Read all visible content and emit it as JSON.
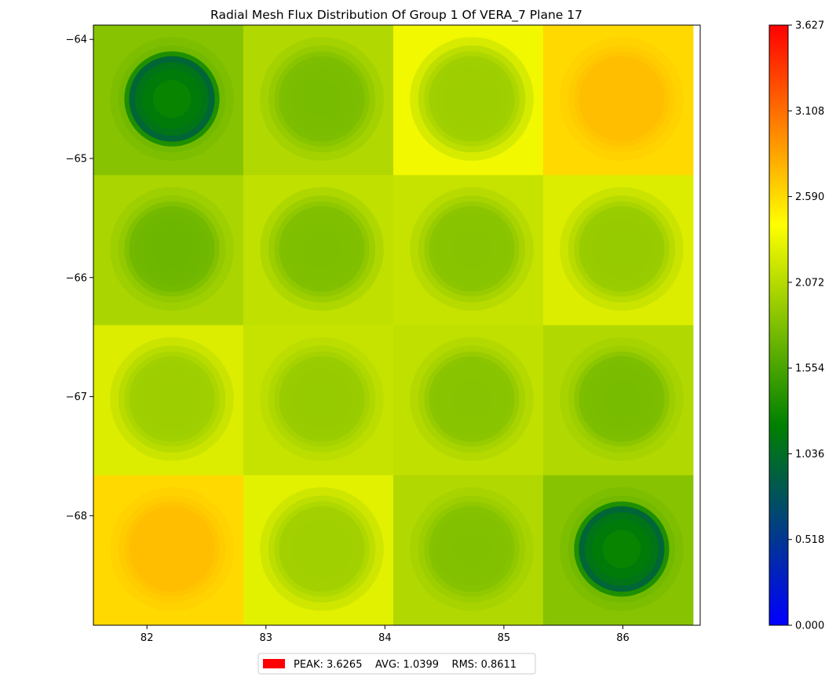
{
  "chart_data": {
    "type": "heatmap",
    "title": "Radial Mesh Flux Distribution Of Group 1 Of VERA_7 Plane 17",
    "xlabel": "",
    "ylabel": "",
    "xlim": [
      81.55,
      86.65
    ],
    "ylim": [
      -68.92,
      -63.88
    ],
    "x_ticks": [
      82,
      83,
      84,
      85,
      86
    ],
    "y_ticks": [
      -64,
      -65,
      -66,
      -67,
      -68
    ],
    "pin_pitch": 1.26,
    "grid_x_start": 81.55,
    "grid_y_start": -63.88,
    "colorbar": {
      "min": 0.0,
      "max": 3.627,
      "ticks": [
        "0.000",
        "0.518",
        "1.036",
        "1.554",
        "2.072",
        "2.590",
        "3.108",
        "3.627"
      ],
      "colors": [
        "#0000ff",
        "#008000",
        "#ffff00",
        "#ff0000"
      ]
    },
    "cells": [
      {
        "row": 0,
        "col": 0,
        "cx": 82.21,
        "cy": -64.5,
        "center": 1.25,
        "ring": 0.95,
        "outer": 1.75,
        "bg": 1.85
      },
      {
        "row": 0,
        "col": 1,
        "cx": 83.47,
        "cy": -64.5,
        "center": 1.78,
        "ring": 1.8,
        "outer": 1.92,
        "bg": 2.05
      },
      {
        "row": 0,
        "col": 2,
        "cx": 84.73,
        "cy": -64.5,
        "center": 1.95,
        "ring": 1.97,
        "outer": 2.1,
        "bg": 2.35
      },
      {
        "row": 0,
        "col": 3,
        "cx": 85.99,
        "cy": -64.5,
        "center": 2.72,
        "ring": 2.72,
        "outer": 2.66,
        "bg": 2.6
      },
      {
        "row": 1,
        "col": 0,
        "cx": 82.21,
        "cy": -65.76,
        "center": 1.72,
        "ring": 1.75,
        "outer": 1.9,
        "bg": 2.02
      },
      {
        "row": 1,
        "col": 1,
        "cx": 83.47,
        "cy": -65.76,
        "center": 1.8,
        "ring": 1.82,
        "outer": 1.95,
        "bg": 2.12
      },
      {
        "row": 1,
        "col": 2,
        "cx": 84.73,
        "cy": -65.76,
        "center": 1.85,
        "ring": 1.87,
        "outer": 2.0,
        "bg": 2.15
      },
      {
        "row": 1,
        "col": 3,
        "cx": 85.99,
        "cy": -65.76,
        "center": 1.92,
        "ring": 1.94,
        "outer": 2.08,
        "bg": 2.25
      },
      {
        "row": 2,
        "col": 0,
        "cx": 82.21,
        "cy": -67.02,
        "center": 1.95,
        "ring": 1.97,
        "outer": 2.08,
        "bg": 2.25
      },
      {
        "row": 2,
        "col": 1,
        "cx": 83.47,
        "cy": -67.02,
        "center": 1.92,
        "ring": 1.94,
        "outer": 2.04,
        "bg": 2.15
      },
      {
        "row": 2,
        "col": 2,
        "cx": 84.73,
        "cy": -67.02,
        "center": 1.85,
        "ring": 1.87,
        "outer": 2.0,
        "bg": 2.12
      },
      {
        "row": 2,
        "col": 3,
        "cx": 85.99,
        "cy": -67.02,
        "center": 1.78,
        "ring": 1.8,
        "outer": 1.95,
        "bg": 2.05
      },
      {
        "row": 3,
        "col": 0,
        "cx": 82.21,
        "cy": -68.28,
        "center": 2.72,
        "ring": 2.72,
        "outer": 2.66,
        "bg": 2.6
      },
      {
        "row": 3,
        "col": 1,
        "cx": 83.47,
        "cy": -68.28,
        "center": 1.97,
        "ring": 1.98,
        "outer": 2.1,
        "bg": 2.28
      },
      {
        "row": 3,
        "col": 2,
        "cx": 84.73,
        "cy": -68.28,
        "center": 1.82,
        "ring": 1.84,
        "outer": 1.95,
        "bg": 2.05
      },
      {
        "row": 3,
        "col": 3,
        "cx": 85.99,
        "cy": -68.28,
        "center": 1.25,
        "ring": 0.95,
        "outer": 1.75,
        "bg": 1.85
      }
    ]
  },
  "legend": {
    "swatch_color": "#ff0000",
    "text": "PEAK: 3.6265    AVG: 1.0399    RMS: 0.8611"
  }
}
